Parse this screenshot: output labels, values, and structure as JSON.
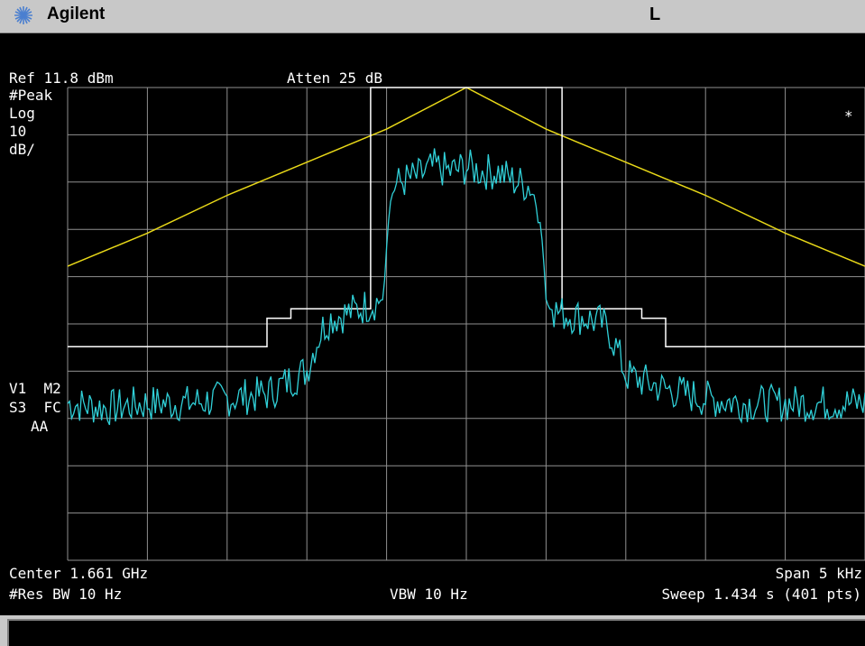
{
  "header": {
    "brand": "Agilent",
    "indicator": "L",
    "logo_icon": "agilent-spark-icon"
  },
  "annotations": {
    "ref_level": "Ref 11.8 dBm",
    "attenuation": "Atten 25 dB",
    "detector": "#Peak",
    "scale_type": "Log",
    "scale_value": "10",
    "scale_unit": "dB/",
    "marker_star": "*",
    "trace_info_1": "V1  M2",
    "trace_info_2": "S3  FC",
    "trace_info_3": "AA",
    "center_freq": "Center 1.661 GHz",
    "span": "Span 5 kHz",
    "res_bw": "#Res BW 10 Hz",
    "vbw": "VBW 10 Hz",
    "sweep": "Sweep 1.434 s (401 pts)"
  },
  "chart_data": {
    "type": "line",
    "x_unit": "kHz offset from center",
    "xlim": [
      -2.5,
      2.5
    ],
    "ylim": [
      -88.2,
      11.8
    ],
    "grid": true,
    "colors": {
      "trace": "#30d0d8",
      "mask": "#ffffff",
      "filter": "#e8d818",
      "grid": "#909090"
    },
    "series": [
      {
        "color": "#30d0d8",
        "x": [
          -2.5,
          -2.25,
          -2.0,
          -1.75,
          -1.5,
          -1.25,
          -1.0,
          -0.95,
          -0.9,
          -0.85,
          -0.75,
          -0.6,
          -0.52,
          -0.5,
          -0.48,
          -0.45,
          -0.4,
          -0.3,
          -0.2,
          -0.1,
          0.0,
          0.1,
          0.2,
          0.3,
          0.4,
          0.45,
          0.48,
          0.5,
          0.52,
          0.6,
          0.75,
          0.85,
          0.9,
          0.95,
          1.0,
          1.25,
          1.5,
          1.75,
          2.0,
          2.25,
          2.5
        ],
        "y": [
          -55,
          -56,
          -55,
          -55,
          -54,
          -53,
          -48,
          -43,
          -39,
          -37,
          -36,
          -34,
          -33,
          -22,
          -13,
          -9,
          -8,
          -7,
          -5,
          -6,
          -5,
          -6,
          -6,
          -8,
          -9,
          -13,
          -22,
          -33,
          -35,
          -36,
          -37,
          -38,
          -40,
          -44,
          -49,
          -52,
          -54,
          -55,
          -55,
          -55,
          -55
        ]
      },
      {
        "color": "#ffffff",
        "x": [
          -2.5,
          -1.25,
          -1.25,
          -1.1,
          -1.1,
          -0.6,
          -0.6,
          0.6,
          0.6,
          1.1,
          1.1,
          1.25,
          1.25,
          2.5
        ],
        "y": [
          -43,
          -43,
          -37,
          -37,
          -35,
          -35,
          11.8,
          11.8,
          -35,
          -35,
          -37,
          -37,
          -43,
          -43
        ]
      },
      {
        "color": "#e8d818",
        "x": [
          -2.5,
          -2.0,
          -1.5,
          -1.0,
          -0.5,
          0.0,
          0.5,
          1.0,
          1.5,
          2.0,
          2.5
        ],
        "y": [
          -26,
          -19,
          -11,
          -4,
          3,
          11.8,
          3,
          -4,
          -11,
          -19,
          -26
        ]
      }
    ]
  }
}
